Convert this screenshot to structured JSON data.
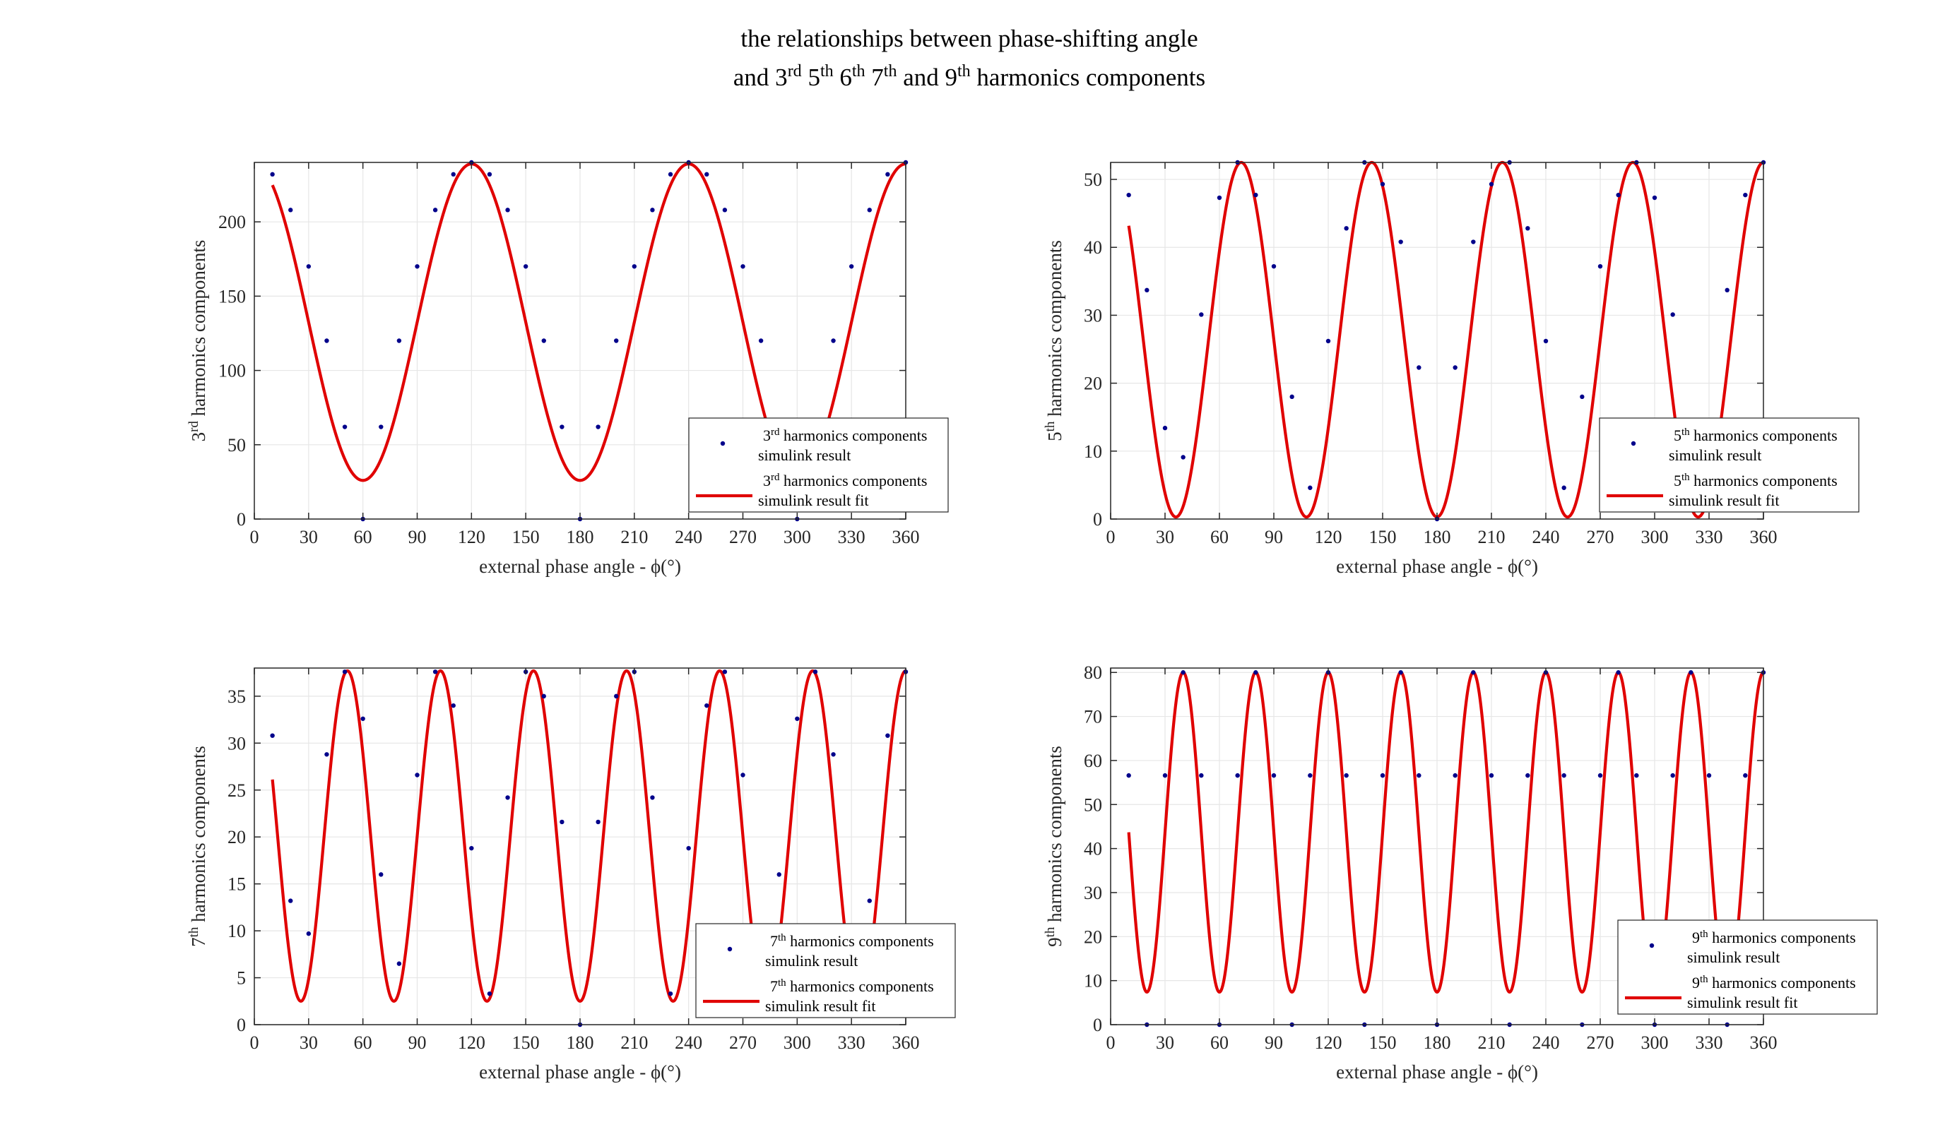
{
  "figure": {
    "title_line1": "the relationships between phase-shifting angle",
    "title_line2_parts": [
      {
        "t": "and 3",
        "sup": false
      },
      {
        "t": "rd",
        "sup": true
      },
      {
        "t": " 5",
        "sup": false
      },
      {
        "t": "th",
        "sup": true
      },
      {
        "t": " 6",
        "sup": false
      },
      {
        "t": "th",
        "sup": true
      },
      {
        "t": " 7",
        "sup": false
      },
      {
        "t": "th",
        "sup": true
      },
      {
        "t": " and 9",
        "sup": false
      },
      {
        "t": "th",
        "sup": true
      },
      {
        "t": " harmonics components",
        "sup": false
      }
    ]
  },
  "colors": {
    "fit": "#e00000",
    "points": "#00008b",
    "grid": "#e6e6e6",
    "axis": "#262626"
  },
  "chart_data": [
    {
      "type": "scatter",
      "harmonic": 3,
      "ord": "rd",
      "xlabel": "external phase angle - ϕ(°)",
      "ylabel_parts": [
        {
          "t": "3",
          "sup": false
        },
        {
          "t": "rd",
          "sup": true
        },
        {
          "t": " harmonics components",
          "sup": false
        }
      ],
      "xlim": [
        0,
        360
      ],
      "ylim": [
        0,
        240
      ],
      "xticks": [
        0,
        30,
        60,
        90,
        120,
        150,
        180,
        210,
        240,
        270,
        300,
        330,
        360
      ],
      "yticks": [
        0,
        50,
        100,
        150,
        200
      ],
      "fit": {
        "A": 106.5,
        "B": 132.5,
        "x_start": 10,
        "x_end": 360
      },
      "points": {
        "x": [
          10,
          20,
          30,
          40,
          50,
          60,
          70,
          80,
          90,
          100,
          110,
          120,
          130,
          140,
          150,
          160,
          170,
          180,
          190,
          200,
          210,
          220,
          230,
          240,
          250,
          260,
          270,
          280,
          290,
          300,
          310,
          320,
          330,
          340,
          350,
          360
        ],
        "y": [
          232,
          208,
          170,
          120,
          62,
          0,
          62,
          120,
          170,
          208,
          232,
          240,
          232,
          208,
          170,
          120,
          62,
          0,
          62,
          120,
          170,
          208,
          232,
          240,
          232,
          208,
          170,
          120,
          62,
          0,
          62,
          120,
          170,
          208,
          232,
          240
        ]
      },
      "legend": [
        {
          "kind": "points",
          "line1_parts": [
            {
              "t": "3",
              "sup": false
            },
            {
              "t": "rd",
              "sup": true
            },
            {
              "t": " harmonics components",
              "sup": false
            }
          ],
          "line2": "simulink result"
        },
        {
          "kind": "line",
          "line1_parts": [
            {
              "t": "3",
              "sup": false
            },
            {
              "t": "rd",
              "sup": true
            },
            {
              "t": " harmonics components",
              "sup": false
            }
          ],
          "line2": "simulink result fit"
        }
      ]
    },
    {
      "type": "scatter",
      "harmonic": 5,
      "ord": "th",
      "xlabel": "external phase angle - ϕ(°)",
      "ylabel_parts": [
        {
          "t": "5",
          "sup": false
        },
        {
          "t": "th",
          "sup": true
        },
        {
          "t": " harmonics components",
          "sup": false
        }
      ],
      "xlim": [
        0,
        360
      ],
      "ylim": [
        0,
        52.5
      ],
      "xticks": [
        0,
        30,
        60,
        90,
        120,
        150,
        180,
        210,
        240,
        270,
        300,
        330,
        360
      ],
      "yticks": [
        0,
        10,
        20,
        30,
        40,
        50
      ],
      "fit": {
        "A": 26.1,
        "B": 26.4,
        "x_start": 10,
        "x_end": 360
      },
      "points": {
        "x": [
          10,
          20,
          30,
          40,
          50,
          60,
          70,
          80,
          90,
          100,
          110,
          120,
          130,
          140,
          150,
          160,
          170,
          180,
          190,
          200,
          210,
          220,
          230,
          240,
          250,
          260,
          270,
          280,
          290,
          300,
          310,
          320,
          330,
          340,
          350,
          360
        ],
        "y": [
          47.7,
          33.7,
          13.4,
          9.1,
          30.1,
          47.3,
          52.5,
          47.7,
          37.2,
          18.0,
          4.6,
          26.2,
          42.8,
          52.5,
          49.3,
          40.8,
          22.3,
          0,
          22.3,
          40.8,
          49.3,
          52.5,
          42.8,
          26.2,
          4.6,
          18.0,
          37.2,
          47.7,
          52.5,
          47.3,
          30.1,
          9.1,
          13.4,
          33.7,
          47.7,
          52.5
        ]
      },
      "legend": [
        {
          "kind": "points",
          "line1_parts": [
            {
              "t": "5",
              "sup": false
            },
            {
              "t": "th",
              "sup": true
            },
            {
              "t": " harmonics components",
              "sup": false
            }
          ],
          "line2": "simulink result"
        },
        {
          "kind": "line",
          "line1_parts": [
            {
              "t": "5",
              "sup": false
            },
            {
              "t": "th",
              "sup": true
            },
            {
              "t": " harmonics components",
              "sup": false
            }
          ],
          "line2": "simulink result fit"
        }
      ]
    },
    {
      "type": "scatter",
      "harmonic": 7,
      "ord": "th",
      "xlabel": "external phase angle - ϕ(°)",
      "ylabel_parts": [
        {
          "t": "7",
          "sup": false
        },
        {
          "t": "th",
          "sup": true
        },
        {
          "t": " harmonics components",
          "sup": false
        }
      ],
      "xlim": [
        0,
        360
      ],
      "ylim": [
        0,
        38
      ],
      "xticks": [
        0,
        30,
        60,
        90,
        120,
        150,
        180,
        210,
        240,
        270,
        300,
        330,
        360
      ],
      "yticks": [
        0,
        5,
        10,
        15,
        20,
        25,
        30,
        35
      ],
      "fit": {
        "A": 17.6,
        "B": 20.1,
        "x_start": 10,
        "x_end": 360
      },
      "points": {
        "x": [
          10,
          20,
          30,
          40,
          50,
          60,
          70,
          80,
          90,
          100,
          110,
          120,
          130,
          140,
          150,
          160,
          170,
          180,
          190,
          200,
          210,
          220,
          230,
          240,
          250,
          260,
          270,
          280,
          290,
          300,
          310,
          320,
          330,
          340,
          350,
          360
        ],
        "y": [
          30.8,
          13.2,
          9.7,
          28.8,
          37.6,
          32.6,
          16.0,
          6.5,
          26.6,
          37.6,
          34.0,
          18.8,
          3.3,
          24.2,
          37.6,
          35.0,
          21.6,
          0,
          21.6,
          35.0,
          37.6,
          24.2,
          3.3,
          18.8,
          34.0,
          37.6,
          26.6,
          6.5,
          16.0,
          32.6,
          37.6,
          28.8,
          9.7,
          13.2,
          30.8,
          37.6
        ]
      },
      "legend": [
        {
          "kind": "points",
          "line1_parts": [
            {
              "t": "7",
              "sup": false
            },
            {
              "t": "th",
              "sup": true
            },
            {
              "t": " harmonics components",
              "sup": false
            }
          ],
          "line2": "simulink result"
        },
        {
          "kind": "line",
          "line1_parts": [
            {
              "t": "7",
              "sup": false
            },
            {
              "t": "th",
              "sup": true
            },
            {
              "t": " harmonics components",
              "sup": false
            }
          ],
          "line2": "simulink result fit"
        }
      ]
    },
    {
      "type": "scatter",
      "harmonic": 9,
      "ord": "th",
      "xlabel": "external phase angle - ϕ(°)",
      "ylabel_parts": [
        {
          "t": "9",
          "sup": false
        },
        {
          "t": "th",
          "sup": true
        },
        {
          "t": " harmonics components",
          "sup": false
        }
      ],
      "xlim": [
        0,
        360
      ],
      "ylim": [
        0,
        81
      ],
      "xticks": [
        0,
        30,
        60,
        90,
        120,
        150,
        180,
        210,
        240,
        270,
        300,
        330,
        360
      ],
      "yticks": [
        0,
        10,
        20,
        30,
        40,
        50,
        60,
        70,
        80
      ],
      "fit": {
        "A": 36.3,
        "B": 43.7,
        "x_start": 10,
        "x_end": 360
      },
      "points": {
        "x": [
          10,
          20,
          30,
          40,
          50,
          60,
          70,
          80,
          90,
          100,
          110,
          120,
          130,
          140,
          150,
          160,
          170,
          180,
          190,
          200,
          210,
          220,
          230,
          240,
          250,
          260,
          270,
          280,
          290,
          300,
          310,
          320,
          330,
          340,
          350,
          360
        ],
        "y": [
          56.6,
          0,
          56.6,
          80,
          56.6,
          0,
          56.6,
          80,
          56.6,
          0,
          56.6,
          80,
          56.6,
          0,
          56.6,
          80,
          56.6,
          0,
          56.6,
          80,
          56.6,
          0,
          56.6,
          80,
          56.6,
          0,
          56.6,
          80,
          56.6,
          0,
          56.6,
          80,
          56.6,
          0,
          56.6,
          80
        ]
      },
      "legend": [
        {
          "kind": "points",
          "line1_parts": [
            {
              "t": "9",
              "sup": false
            },
            {
              "t": "th",
              "sup": true
            },
            {
              "t": " harmonics components",
              "sup": false
            }
          ],
          "line2": "simulink result"
        },
        {
          "kind": "line",
          "line1_parts": [
            {
              "t": "9",
              "sup": false
            },
            {
              "t": "th",
              "sup": true
            },
            {
              "t": " harmonics components",
              "sup": false
            }
          ],
          "line2": "simulink result fit"
        }
      ]
    }
  ]
}
